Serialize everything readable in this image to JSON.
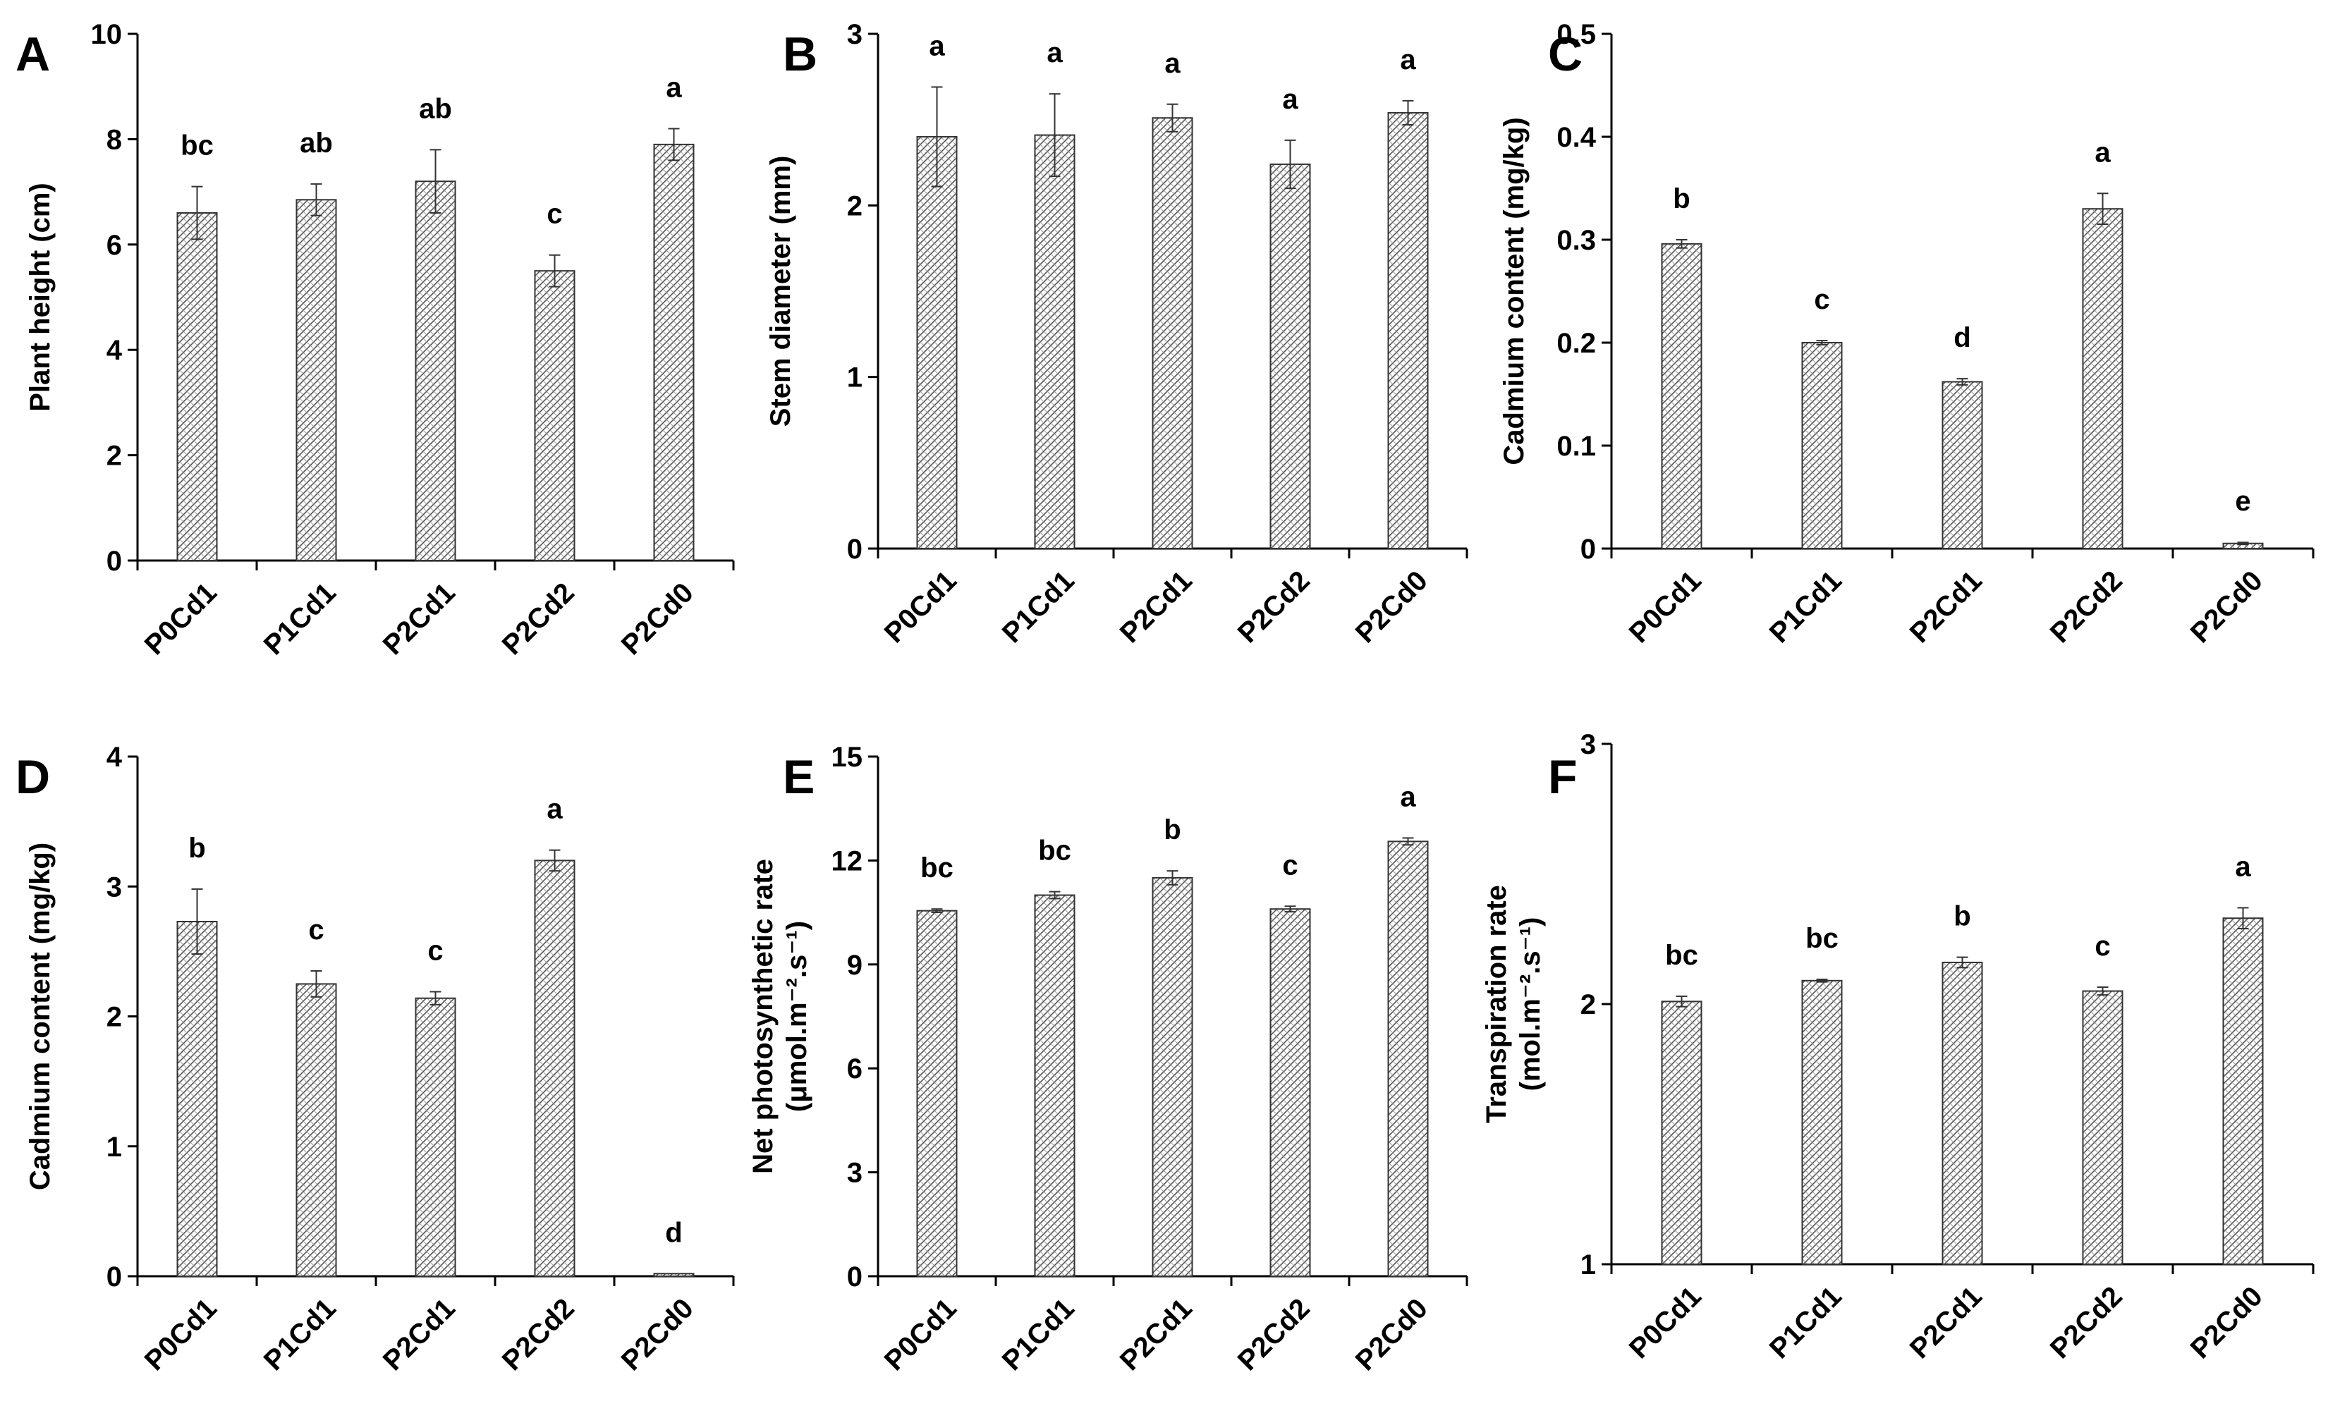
{
  "chart_data": [
    {
      "type": "bar",
      "panel": "A",
      "categories": [
        "P0Cd1",
        "P1Cd1",
        "P2Cd1",
        "P2Cd2",
        "P2Cd0"
      ],
      "values": [
        6.6,
        6.85,
        7.2,
        5.5,
        7.9
      ],
      "errors": [
        0.5,
        0.3,
        0.6,
        0.3,
        0.3
      ],
      "letters": [
        "bc",
        "ab",
        "ab",
        "c",
        "a"
      ],
      "ylabel_lines": [
        "Plant height (cm)"
      ],
      "ylim": [
        0,
        10
      ],
      "yticks": [
        0,
        2,
        4,
        6,
        8,
        10
      ],
      "tick_labels": [
        "0",
        "2",
        "4",
        "6",
        "8",
        "10"
      ]
    },
    {
      "type": "bar",
      "panel": "B",
      "categories": [
        "P0Cd1",
        "P1Cd1",
        "P2Cd1",
        "P2Cd2",
        "P2Cd0"
      ],
      "values": [
        2.4,
        2.41,
        2.51,
        2.24,
        2.54
      ],
      "errors": [
        0.29,
        0.24,
        0.08,
        0.14,
        0.07
      ],
      "letters": [
        "a",
        "a",
        "a",
        "a",
        "a"
      ],
      "ylabel_lines": [
        "Stem diameter (mm)"
      ],
      "ylim": [
        0,
        3
      ],
      "yticks": [
        0,
        1,
        2,
        3
      ],
      "tick_labels": [
        "0",
        "1",
        "2",
        "3"
      ]
    },
    {
      "type": "bar",
      "panel": "C",
      "categories": [
        "P0Cd1",
        "P1Cd1",
        "P2Cd1",
        "P2Cd2",
        "P2Cd0"
      ],
      "values": [
        0.296,
        0.2,
        0.162,
        0.33,
        0.005
      ],
      "errors": [
        0.004,
        0.002,
        0.003,
        0.015,
        0.001
      ],
      "letters": [
        "b",
        "c",
        "d",
        "a",
        "e"
      ],
      "ylabel_lines": [
        "Cadmium content (mg/kg)"
      ],
      "ylim": [
        0,
        0.5
      ],
      "yticks": [
        0,
        0.1,
        0.2,
        0.3,
        0.4,
        0.5
      ],
      "tick_labels": [
        "0",
        "0.1",
        "0.2",
        "0.3",
        "0.4",
        "0.5"
      ]
    },
    {
      "type": "bar",
      "panel": "D",
      "categories": [
        "P0Cd1",
        "P1Cd1",
        "P2Cd1",
        "P2Cd2",
        "P2Cd0"
      ],
      "values": [
        2.73,
        2.25,
        2.14,
        3.2,
        0.02
      ],
      "errors": [
        0.25,
        0.1,
        0.05,
        0.08,
        0.0
      ],
      "letters": [
        "b",
        "c",
        "c",
        "a",
        "d"
      ],
      "ylabel_lines": [
        "Cadmium content (mg/kg)"
      ],
      "ylim": [
        0,
        4
      ],
      "yticks": [
        0,
        1,
        2,
        3,
        4
      ],
      "tick_labels": [
        "0",
        "1",
        "2",
        "3",
        "4"
      ]
    },
    {
      "type": "bar",
      "panel": "E",
      "categories": [
        "P0Cd1",
        "P1Cd1",
        "P2Cd1",
        "P2Cd2",
        "P2Cd0"
      ],
      "values": [
        10.55,
        11.0,
        11.5,
        10.6,
        12.55
      ],
      "errors": [
        0.05,
        0.1,
        0.2,
        0.08,
        0.1
      ],
      "letters": [
        "bc",
        "bc",
        "b",
        "c",
        "a"
      ],
      "ylabel_lines": [
        "Net photosynthetic rate",
        "(μmol.m⁻².s⁻¹)"
      ],
      "ylim": [
        0,
        15
      ],
      "yticks": [
        0,
        3,
        6,
        9,
        12,
        15
      ],
      "tick_labels": [
        "0",
        "3",
        "6",
        "9",
        "12",
        "15"
      ]
    },
    {
      "type": "bar",
      "panel": "F",
      "categories": [
        "P0Cd1",
        "P1Cd1",
        "P2Cd1",
        "P2Cd2",
        "P2Cd0"
      ],
      "values": [
        2.01,
        2.09,
        2.16,
        2.05,
        2.33
      ],
      "errors": [
        0.02,
        0.005,
        0.02,
        0.015,
        0.04
      ],
      "letters": [
        "bc",
        "bc",
        "b",
        "c",
        "a"
      ],
      "ylabel_lines": [
        "Transpiration rate",
        "(mol.m⁻².s⁻¹)"
      ],
      "ylim": [
        1,
        3
      ],
      "yticks": [
        1,
        2,
        3
      ],
      "tick_labels": [
        "1",
        "2",
        "3"
      ]
    }
  ]
}
